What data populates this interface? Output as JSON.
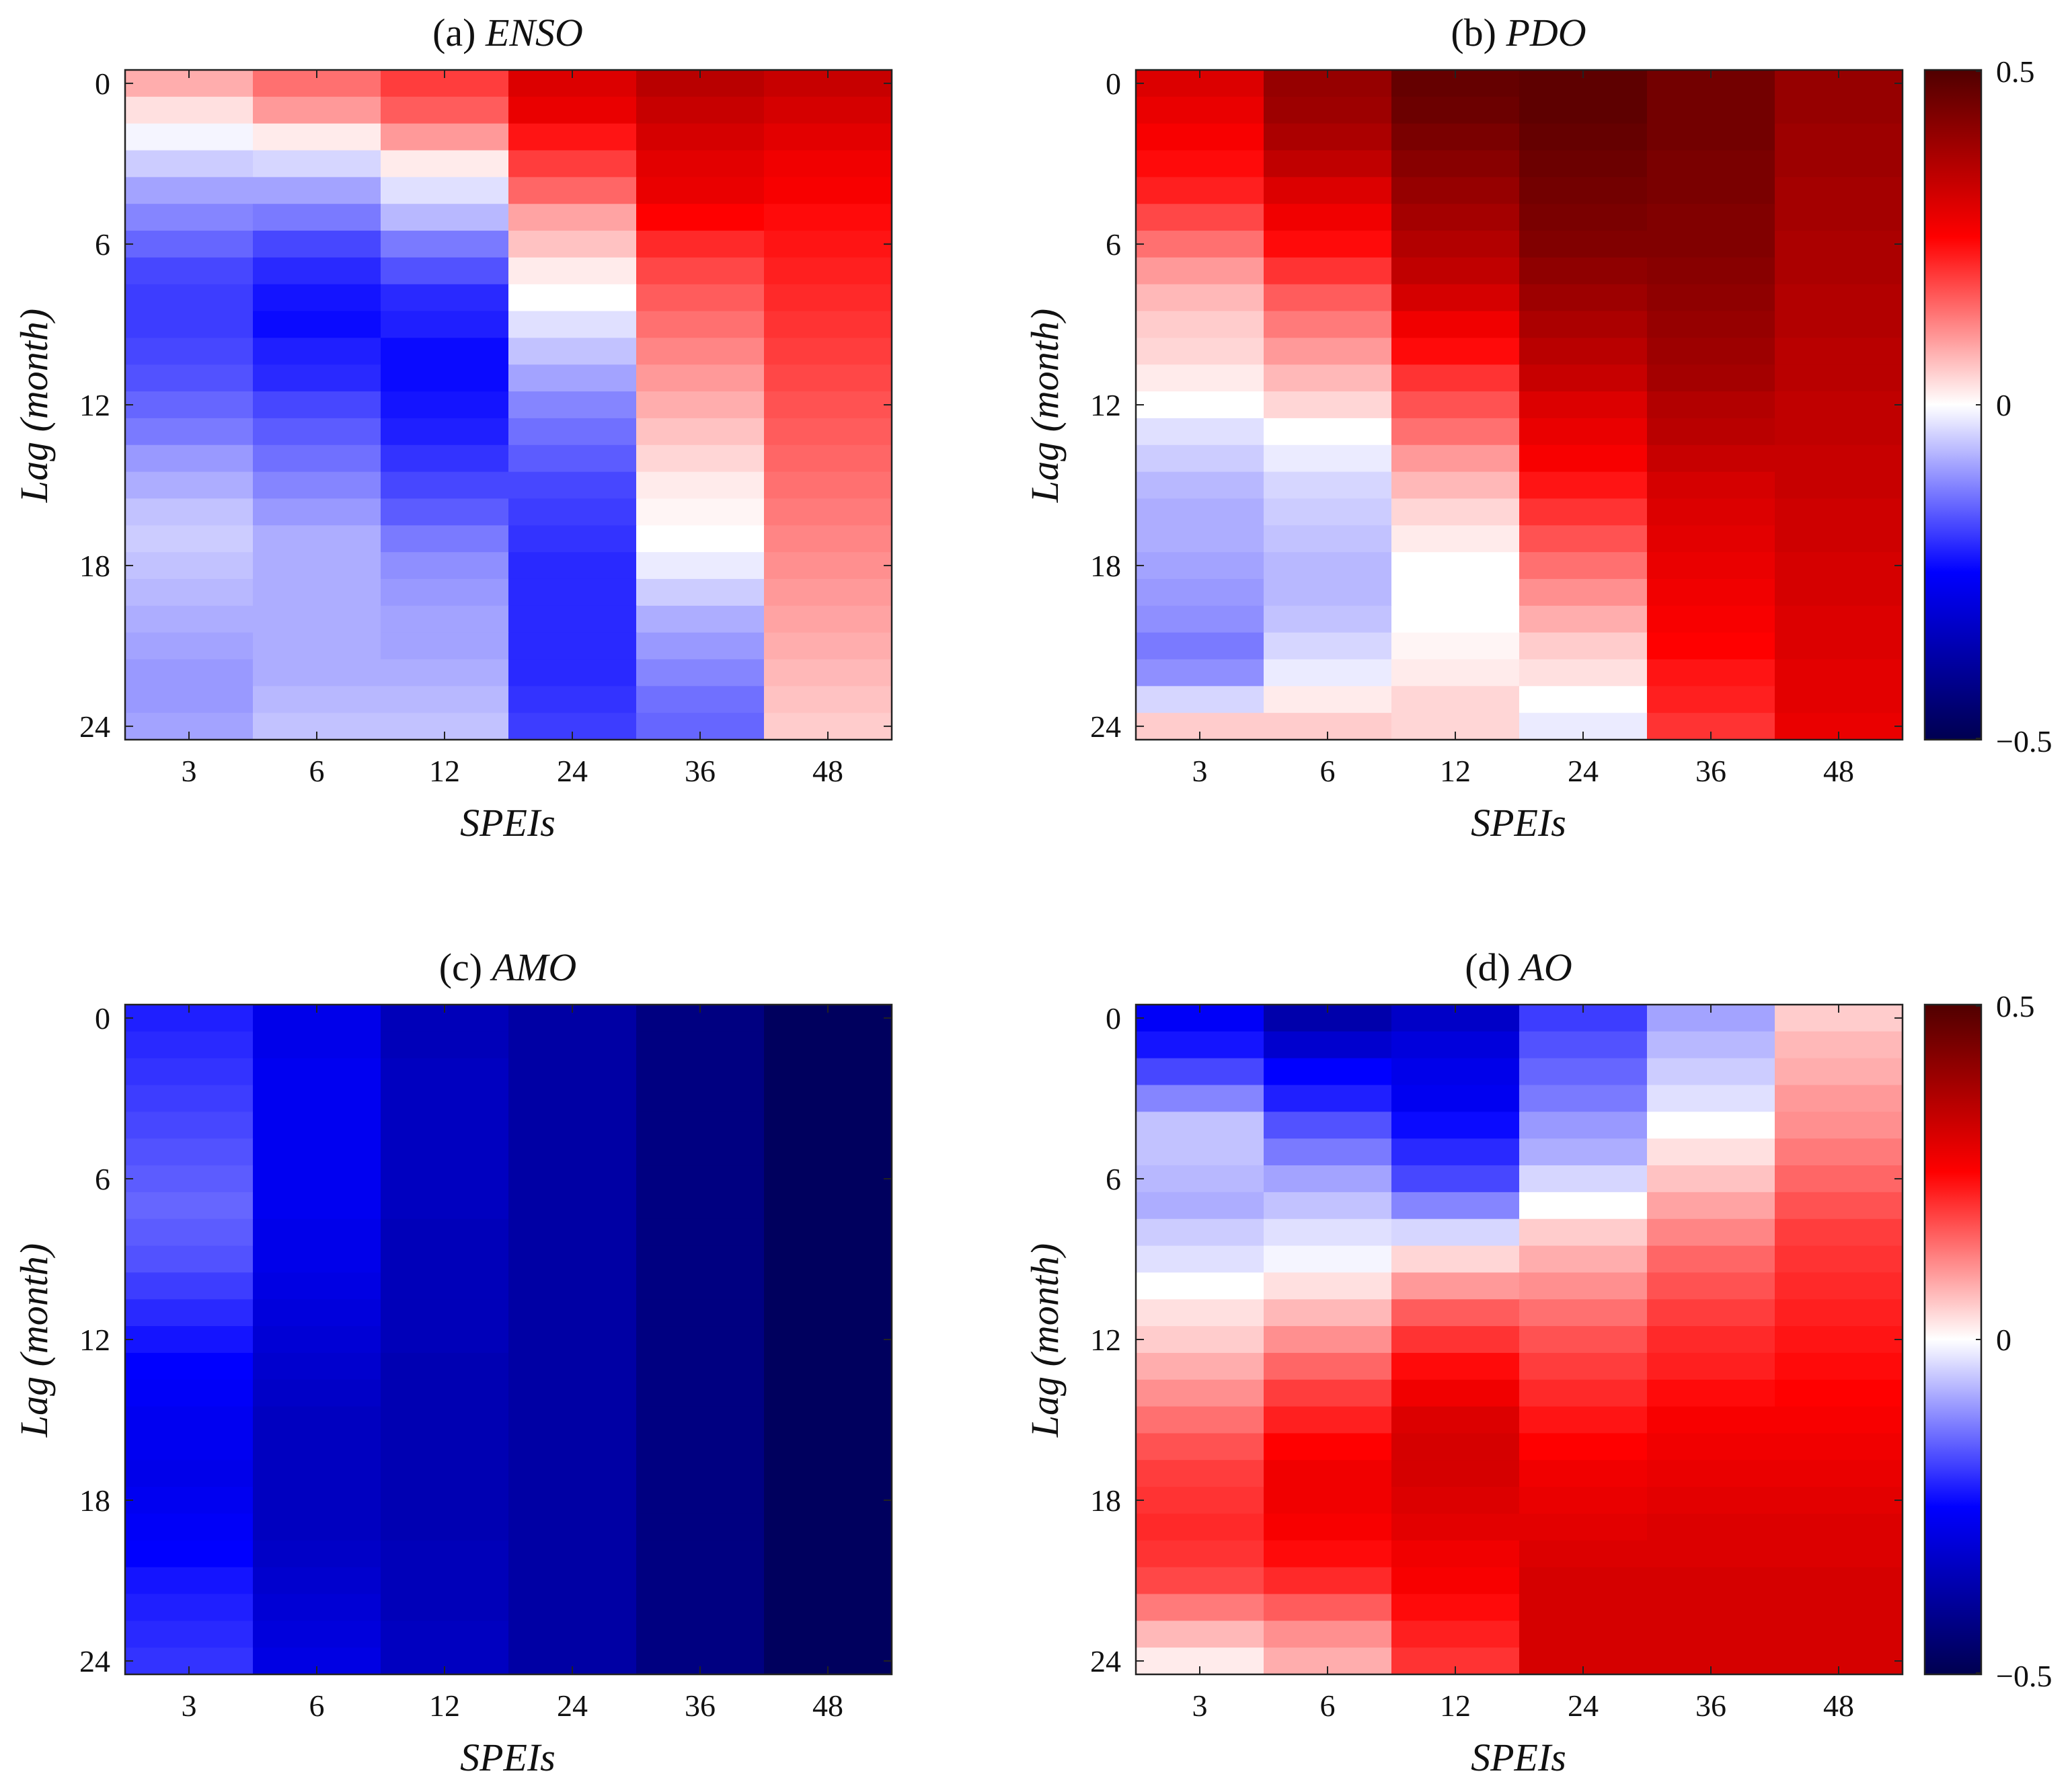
{
  "colors": {
    "cmap_low": "#000050",
    "cmap_blue": "#0000ff",
    "cmap_white": "#ffffff",
    "cmap_red": "#ff0000",
    "cmap_high": "#500000",
    "axis": "#222222"
  },
  "colorbar": {
    "max_label": "0.5",
    "mid_label": "0",
    "min_label": "−0.5",
    "range": [
      -0.5,
      0.5
    ]
  },
  "chart_data": [
    {
      "type": "heatmap",
      "title": "(a) ENSO",
      "title_prefix": "(a)",
      "title_name": "ENSO",
      "xlabel": "SPEIs",
      "ylabel": "Lag (month)",
      "x_categories": [
        "3",
        "6",
        "12",
        "24",
        "36",
        "48"
      ],
      "y_ticks": [
        "0",
        "6",
        "12",
        "18",
        "24"
      ],
      "lags": 25,
      "value_range": [
        -0.5,
        0.5
      ],
      "values": [
        [
          0.08,
          0.14,
          0.19,
          0.3,
          0.35,
          0.33
        ],
        [
          0.03,
          0.1,
          0.16,
          0.28,
          0.33,
          0.31
        ],
        [
          -0.01,
          0.02,
          0.1,
          0.23,
          0.31,
          0.29
        ],
        [
          -0.05,
          -0.04,
          0.02,
          0.19,
          0.29,
          0.27
        ],
        [
          -0.09,
          -0.09,
          -0.03,
          0.15,
          0.28,
          0.26
        ],
        [
          -0.12,
          -0.13,
          -0.07,
          0.09,
          0.25,
          0.24
        ],
        [
          -0.15,
          -0.18,
          -0.13,
          0.06,
          0.21,
          0.23
        ],
        [
          -0.18,
          -0.21,
          -0.17,
          0.02,
          0.18,
          0.22
        ],
        [
          -0.19,
          -0.23,
          -0.21,
          0.0,
          0.16,
          0.21
        ],
        [
          -0.19,
          -0.24,
          -0.22,
          -0.03,
          0.14,
          0.2
        ],
        [
          -0.18,
          -0.22,
          -0.24,
          -0.06,
          0.12,
          0.19
        ],
        [
          -0.17,
          -0.21,
          -0.24,
          -0.09,
          0.1,
          0.18
        ],
        [
          -0.15,
          -0.18,
          -0.23,
          -0.12,
          0.08,
          0.17
        ],
        [
          -0.13,
          -0.16,
          -0.22,
          -0.14,
          0.06,
          0.16
        ],
        [
          -0.1,
          -0.14,
          -0.2,
          -0.16,
          0.04,
          0.15
        ],
        [
          -0.08,
          -0.12,
          -0.18,
          -0.18,
          0.02,
          0.14
        ],
        [
          -0.06,
          -0.1,
          -0.16,
          -0.19,
          0.01,
          0.13
        ],
        [
          -0.05,
          -0.08,
          -0.13,
          -0.2,
          0.0,
          0.12
        ],
        [
          -0.06,
          -0.08,
          -0.11,
          -0.21,
          -0.02,
          0.11
        ],
        [
          -0.07,
          -0.08,
          -0.1,
          -0.21,
          -0.05,
          0.1
        ],
        [
          -0.08,
          -0.08,
          -0.09,
          -0.21,
          -0.08,
          0.09
        ],
        [
          -0.09,
          -0.08,
          -0.09,
          -0.21,
          -0.1,
          0.08
        ],
        [
          -0.1,
          -0.08,
          -0.08,
          -0.21,
          -0.12,
          0.07
        ],
        [
          -0.1,
          -0.07,
          -0.07,
          -0.2,
          -0.14,
          0.06
        ],
        [
          -0.09,
          -0.06,
          -0.06,
          -0.19,
          -0.15,
          0.05
        ]
      ]
    },
    {
      "type": "heatmap",
      "title": "(b) PDO",
      "title_prefix": "(b)",
      "title_name": "PDO",
      "xlabel": "SPEIs",
      "ylabel": "Lag (month)",
      "x_categories": [
        "3",
        "6",
        "12",
        "24",
        "36",
        "48"
      ],
      "y_ticks": [
        "0",
        "6",
        "12",
        "18",
        "24"
      ],
      "lags": 25,
      "value_range": [
        -0.5,
        0.5
      ],
      "values": [
        [
          0.3,
          0.4,
          0.47,
          0.48,
          0.45,
          0.4
        ],
        [
          0.28,
          0.39,
          0.46,
          0.48,
          0.45,
          0.4
        ],
        [
          0.26,
          0.37,
          0.44,
          0.47,
          0.45,
          0.39
        ],
        [
          0.24,
          0.34,
          0.42,
          0.46,
          0.44,
          0.39
        ],
        [
          0.22,
          0.3,
          0.4,
          0.45,
          0.44,
          0.38
        ],
        [
          0.18,
          0.27,
          0.38,
          0.44,
          0.43,
          0.38
        ],
        [
          0.14,
          0.24,
          0.36,
          0.43,
          0.43,
          0.37
        ],
        [
          0.1,
          0.2,
          0.34,
          0.41,
          0.42,
          0.37
        ],
        [
          0.07,
          0.16,
          0.31,
          0.39,
          0.41,
          0.36
        ],
        [
          0.05,
          0.13,
          0.27,
          0.37,
          0.4,
          0.36
        ],
        [
          0.04,
          0.1,
          0.24,
          0.35,
          0.39,
          0.35
        ],
        [
          0.02,
          0.07,
          0.2,
          0.33,
          0.38,
          0.35
        ],
        [
          0.0,
          0.04,
          0.17,
          0.3,
          0.36,
          0.34
        ],
        [
          -0.03,
          0.0,
          0.14,
          0.28,
          0.35,
          0.34
        ],
        [
          -0.05,
          -0.02,
          0.1,
          0.26,
          0.33,
          0.33
        ],
        [
          -0.07,
          -0.04,
          0.07,
          0.23,
          0.31,
          0.33
        ],
        [
          -0.08,
          -0.05,
          0.04,
          0.2,
          0.3,
          0.32
        ],
        [
          -0.08,
          -0.06,
          0.02,
          0.17,
          0.29,
          0.32
        ],
        [
          -0.09,
          -0.07,
          0.0,
          0.14,
          0.28,
          0.31
        ],
        [
          -0.1,
          -0.07,
          0.0,
          0.11,
          0.27,
          0.31
        ],
        [
          -0.11,
          -0.06,
          0.0,
          0.08,
          0.26,
          0.3
        ],
        [
          -0.13,
          -0.04,
          0.01,
          0.05,
          0.25,
          0.3
        ],
        [
          -0.11,
          -0.02,
          0.02,
          0.03,
          0.23,
          0.29
        ],
        [
          -0.04,
          0.02,
          0.04,
          0.0,
          0.22,
          0.29
        ],
        [
          0.05,
          0.05,
          0.04,
          -0.02,
          0.2,
          0.28
        ]
      ]
    },
    {
      "type": "heatmap",
      "title": "(c) AMO",
      "title_prefix": "(c)",
      "title_name": "AMO",
      "xlabel": "SPEIs",
      "ylabel": "Lag (month)",
      "x_categories": [
        "3",
        "6",
        "12",
        "24",
        "36",
        "48"
      ],
      "y_ticks": [
        "0",
        "6",
        "12",
        "18",
        "24"
      ],
      "lags": 25,
      "value_range": [
        -0.5,
        0.5
      ],
      "values": [
        [
          -0.22,
          -0.28,
          -0.35,
          -0.38,
          -0.43,
          -0.48
        ],
        [
          -0.21,
          -0.28,
          -0.35,
          -0.38,
          -0.43,
          -0.48
        ],
        [
          -0.2,
          -0.27,
          -0.34,
          -0.38,
          -0.43,
          -0.48
        ],
        [
          -0.19,
          -0.27,
          -0.34,
          -0.38,
          -0.43,
          -0.48
        ],
        [
          -0.18,
          -0.27,
          -0.34,
          -0.38,
          -0.43,
          -0.48
        ],
        [
          -0.17,
          -0.27,
          -0.34,
          -0.38,
          -0.43,
          -0.48
        ],
        [
          -0.16,
          -0.27,
          -0.34,
          -0.38,
          -0.43,
          -0.48
        ],
        [
          -0.15,
          -0.27,
          -0.34,
          -0.38,
          -0.43,
          -0.48
        ],
        [
          -0.16,
          -0.28,
          -0.35,
          -0.38,
          -0.43,
          -0.48
        ],
        [
          -0.17,
          -0.28,
          -0.35,
          -0.38,
          -0.43,
          -0.48
        ],
        [
          -0.19,
          -0.29,
          -0.35,
          -0.38,
          -0.43,
          -0.48
        ],
        [
          -0.21,
          -0.3,
          -0.35,
          -0.38,
          -0.43,
          -0.48
        ],
        [
          -0.23,
          -0.31,
          -0.35,
          -0.38,
          -0.43,
          -0.48
        ],
        [
          -0.25,
          -0.32,
          -0.36,
          -0.38,
          -0.43,
          -0.48
        ],
        [
          -0.26,
          -0.33,
          -0.36,
          -0.38,
          -0.43,
          -0.48
        ],
        [
          -0.27,
          -0.34,
          -0.36,
          -0.38,
          -0.43,
          -0.48
        ],
        [
          -0.27,
          -0.34,
          -0.36,
          -0.38,
          -0.43,
          -0.48
        ],
        [
          -0.28,
          -0.34,
          -0.36,
          -0.38,
          -0.43,
          -0.48
        ],
        [
          -0.27,
          -0.34,
          -0.36,
          -0.38,
          -0.43,
          -0.48
        ],
        [
          -0.26,
          -0.34,
          -0.36,
          -0.38,
          -0.43,
          -0.48
        ],
        [
          -0.25,
          -0.33,
          -0.35,
          -0.38,
          -0.43,
          -0.48
        ],
        [
          -0.23,
          -0.32,
          -0.35,
          -0.38,
          -0.43,
          -0.48
        ],
        [
          -0.22,
          -0.31,
          -0.35,
          -0.38,
          -0.43,
          -0.48
        ],
        [
          -0.21,
          -0.3,
          -0.34,
          -0.38,
          -0.43,
          -0.48
        ],
        [
          -0.2,
          -0.29,
          -0.34,
          -0.38,
          -0.43,
          -0.48
        ]
      ]
    },
    {
      "type": "heatmap",
      "title": "(d) AO",
      "title_prefix": "(d)",
      "title_name": "AO",
      "xlabel": "SPEIs",
      "ylabel": "Lag (month)",
      "x_categories": [
        "3",
        "6",
        "12",
        "24",
        "36",
        "48"
      ],
      "y_ticks": [
        "0",
        "6",
        "12",
        "18",
        "24"
      ],
      "lags": 25,
      "value_range": [
        -0.5,
        0.5
      ],
      "values": [
        [
          -0.26,
          -0.37,
          -0.33,
          -0.19,
          -0.09,
          0.05
        ],
        [
          -0.23,
          -0.32,
          -0.3,
          -0.17,
          -0.07,
          0.07
        ],
        [
          -0.18,
          -0.25,
          -0.28,
          -0.15,
          -0.05,
          0.08
        ],
        [
          -0.12,
          -0.22,
          -0.27,
          -0.13,
          -0.03,
          0.1
        ],
        [
          -0.06,
          -0.17,
          -0.24,
          -0.1,
          0.0,
          0.11
        ],
        [
          -0.06,
          -0.13,
          -0.21,
          -0.08,
          0.03,
          0.13
        ],
        [
          -0.07,
          -0.09,
          -0.18,
          -0.04,
          0.06,
          0.15
        ],
        [
          -0.08,
          -0.06,
          -0.12,
          0.0,
          0.09,
          0.17
        ],
        [
          -0.05,
          -0.03,
          -0.04,
          0.05,
          0.12,
          0.19
        ],
        [
          -0.03,
          -0.01,
          0.04,
          0.08,
          0.15,
          0.2
        ],
        [
          0.0,
          0.03,
          0.1,
          0.11,
          0.17,
          0.21
        ],
        [
          0.03,
          0.07,
          0.16,
          0.14,
          0.19,
          0.22
        ],
        [
          0.05,
          0.11,
          0.2,
          0.17,
          0.21,
          0.23
        ],
        [
          0.08,
          0.15,
          0.24,
          0.19,
          0.22,
          0.24
        ],
        [
          0.11,
          0.19,
          0.27,
          0.21,
          0.24,
          0.25
        ],
        [
          0.14,
          0.22,
          0.3,
          0.23,
          0.26,
          0.26
        ],
        [
          0.17,
          0.25,
          0.31,
          0.25,
          0.27,
          0.27
        ],
        [
          0.19,
          0.27,
          0.31,
          0.27,
          0.28,
          0.28
        ],
        [
          0.2,
          0.27,
          0.3,
          0.28,
          0.29,
          0.29
        ],
        [
          0.21,
          0.26,
          0.29,
          0.29,
          0.3,
          0.3
        ],
        [
          0.2,
          0.24,
          0.27,
          0.3,
          0.3,
          0.3
        ],
        [
          0.18,
          0.21,
          0.26,
          0.31,
          0.31,
          0.31
        ],
        [
          0.13,
          0.16,
          0.24,
          0.31,
          0.31,
          0.31
        ],
        [
          0.07,
          0.11,
          0.22,
          0.31,
          0.31,
          0.31
        ],
        [
          0.02,
          0.08,
          0.2,
          0.31,
          0.31,
          0.31
        ]
      ]
    }
  ]
}
